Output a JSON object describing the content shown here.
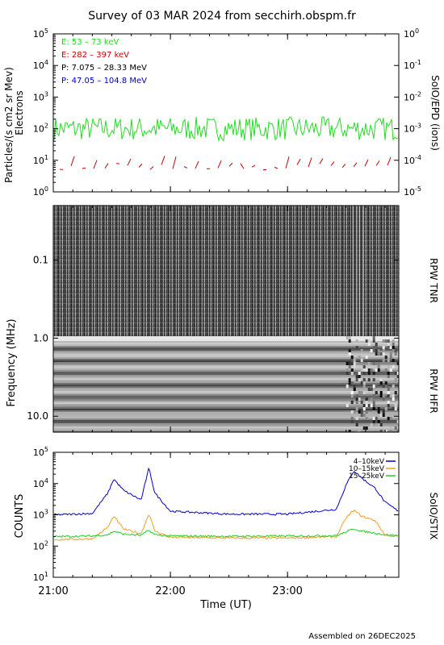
{
  "title": "Survey of 03 MAR 2024 from secchirh.obspm.fr",
  "footer": "Assembled on 26DEC2025",
  "xlabel": "Time (UT)",
  "colors": {
    "e_low": "#22dd22",
    "e_high": "#cc0000",
    "p_low": "#000000",
    "p_high": "#0000cc",
    "stix_low": "#0000cc",
    "stix_mid": "#f0a020",
    "stix_high": "#22cc22"
  },
  "x_range_hours": [
    21.0,
    23.95
  ],
  "x_ticks": [
    {
      "value": 21.0,
      "label": "21:00"
    },
    {
      "value": 22.0,
      "label": "22:00"
    },
    {
      "value": 23.0,
      "label": "23:00"
    }
  ],
  "panels": {
    "epd": {
      "ylabel_line1": "Particles/(s cm2 sr Mev)",
      "ylabel_line2": "Electrons",
      "right_label": "SoIO/EPD (ions)",
      "left_ticks": [
        {
          "exp": 0,
          "label": "10",
          "sup": "0"
        },
        {
          "exp": 1,
          "label": "10",
          "sup": "1"
        },
        {
          "exp": 2,
          "label": "10",
          "sup": "2"
        },
        {
          "exp": 3,
          "label": "10",
          "sup": "3"
        },
        {
          "exp": 4,
          "label": "10",
          "sup": "4"
        },
        {
          "exp": 5,
          "label": "10",
          "sup": "5"
        }
      ],
      "right_ticks": [
        {
          "exp": -5,
          "label": "10",
          "sup": "-5"
        },
        {
          "exp": -4,
          "label": "10",
          "sup": "-4"
        },
        {
          "exp": -3,
          "label": "10",
          "sup": "-3"
        },
        {
          "exp": -2,
          "label": "10",
          "sup": "-2"
        },
        {
          "exp": -1,
          "label": "10",
          "sup": "-1"
        },
        {
          "exp": 0,
          "label": "10",
          "sup": "0"
        }
      ],
      "legend": [
        {
          "text": "E: 53 – 73 keV",
          "color": "#22dd22"
        },
        {
          "text": "E: 282 – 397 keV",
          "color": "#cc0000"
        },
        {
          "text": "P: 7.075 – 28.33 MeV",
          "color": "#000000"
        },
        {
          "text": "P: 47.05 – 104.8 MeV",
          "color": "#0000cc"
        }
      ]
    },
    "rpw": {
      "ylabel": "Frequency (MHz)",
      "tnr_label": "RPW TNR",
      "hfr_label": "RPW HFR",
      "ticks": [
        {
          "value": 0.1,
          "label": "0.1"
        },
        {
          "value": 1.0,
          "label": "1.0"
        },
        {
          "value": 10.0,
          "label": "10.0"
        }
      ]
    },
    "stix": {
      "ylabel": "COUNTS",
      "right_label": "SoIO/STIX",
      "ticks": [
        {
          "exp": 1,
          "label": "10",
          "sup": "1"
        },
        {
          "exp": 2,
          "label": "10",
          "sup": "2"
        },
        {
          "exp": 3,
          "label": "10",
          "sup": "3"
        },
        {
          "exp": 4,
          "label": "10",
          "sup": "4"
        },
        {
          "exp": 5,
          "label": "10",
          "sup": "5"
        }
      ],
      "legend": [
        {
          "text": "4–10keV",
          "color": "#0000cc"
        },
        {
          "text": "10–15keV",
          "color": "#f0a020"
        },
        {
          "text": "15–25keV",
          "color": "#22cc22"
        }
      ]
    }
  },
  "chart_data": [
    {
      "type": "line",
      "title": "",
      "xlabel": "",
      "ylabel": "Particles/(s cm2 sr Mev) Electrons",
      "yscale": "log",
      "ylim": [
        1,
        100000
      ],
      "xlim": [
        "21:00",
        "23:57"
      ],
      "series": [
        {
          "name": "E: 53 – 73 keV",
          "x": [
            "21:00",
            "21:20",
            "21:40",
            "22:00",
            "22:20",
            "22:40",
            "23:00",
            "23:20",
            "23:40",
            "23:57"
          ],
          "values": [
            100,
            120,
            110,
            130,
            100,
            120,
            110,
            100,
            120,
            110
          ]
        },
        {
          "name": "E: 282 – 397 keV",
          "x": [
            "21:00",
            "21:20",
            "21:40",
            "22:00",
            "22:20",
            "22:40",
            "23:00",
            "23:20",
            "23:40",
            "23:57"
          ],
          "values": [
            5,
            5,
            6,
            5,
            5,
            5,
            6,
            8,
            5,
            6
          ]
        }
      ]
    },
    {
      "type": "heatmap",
      "title": "",
      "ylabel": "Frequency (MHz)",
      "yscale": "log",
      "ylim": [
        0.02,
        16
      ],
      "xlim": [
        "21:00",
        "23:57"
      ],
      "note_ranges": [
        "RPW TNR",
        "RPW HFR"
      ]
    },
    {
      "type": "line",
      "title": "",
      "xlabel": "Time (UT)",
      "ylabel": "COUNTS",
      "yscale": "log",
      "ylim": [
        10,
        100000
      ],
      "xlim": [
        "21:00",
        "23:57"
      ],
      "series": [
        {
          "name": "4–10keV",
          "x": [
            "21:00",
            "21:20",
            "21:28",
            "21:31",
            "21:36",
            "21:45",
            "21:49",
            "21:52",
            "22:00",
            "22:30",
            "23:00",
            "23:25",
            "23:30",
            "23:34",
            "23:38",
            "23:45",
            "23:50",
            "23:57"
          ],
          "values": [
            1000,
            1100,
            5000,
            14000,
            6000,
            3000,
            32000,
            5000,
            1300,
            1050,
            1050,
            1500,
            9000,
            26000,
            15000,
            7000,
            2500,
            1300
          ]
        },
        {
          "name": "10–15keV",
          "x": [
            "21:00",
            "21:20",
            "21:28",
            "21:31",
            "21:36",
            "21:45",
            "21:49",
            "21:52",
            "22:00",
            "22:30",
            "23:00",
            "23:25",
            "23:30",
            "23:34",
            "23:38",
            "23:45",
            "23:50",
            "23:57"
          ],
          "values": [
            160,
            170,
            400,
            900,
            350,
            250,
            1100,
            300,
            190,
            180,
            180,
            200,
            800,
            1400,
            900,
            650,
            220,
            200
          ]
        },
        {
          "name": "15–25keV",
          "x": [
            "21:00",
            "21:20",
            "21:28",
            "21:31",
            "21:36",
            "21:45",
            "21:49",
            "21:52",
            "22:00",
            "22:30",
            "23:00",
            "23:25",
            "23:30",
            "23:34",
            "23:38",
            "23:45",
            "23:50",
            "23:57"
          ],
          "values": [
            200,
            210,
            230,
            300,
            240,
            220,
            320,
            230,
            210,
            205,
            210,
            215,
            280,
            360,
            300,
            260,
            230,
            215
          ]
        }
      ]
    }
  ]
}
